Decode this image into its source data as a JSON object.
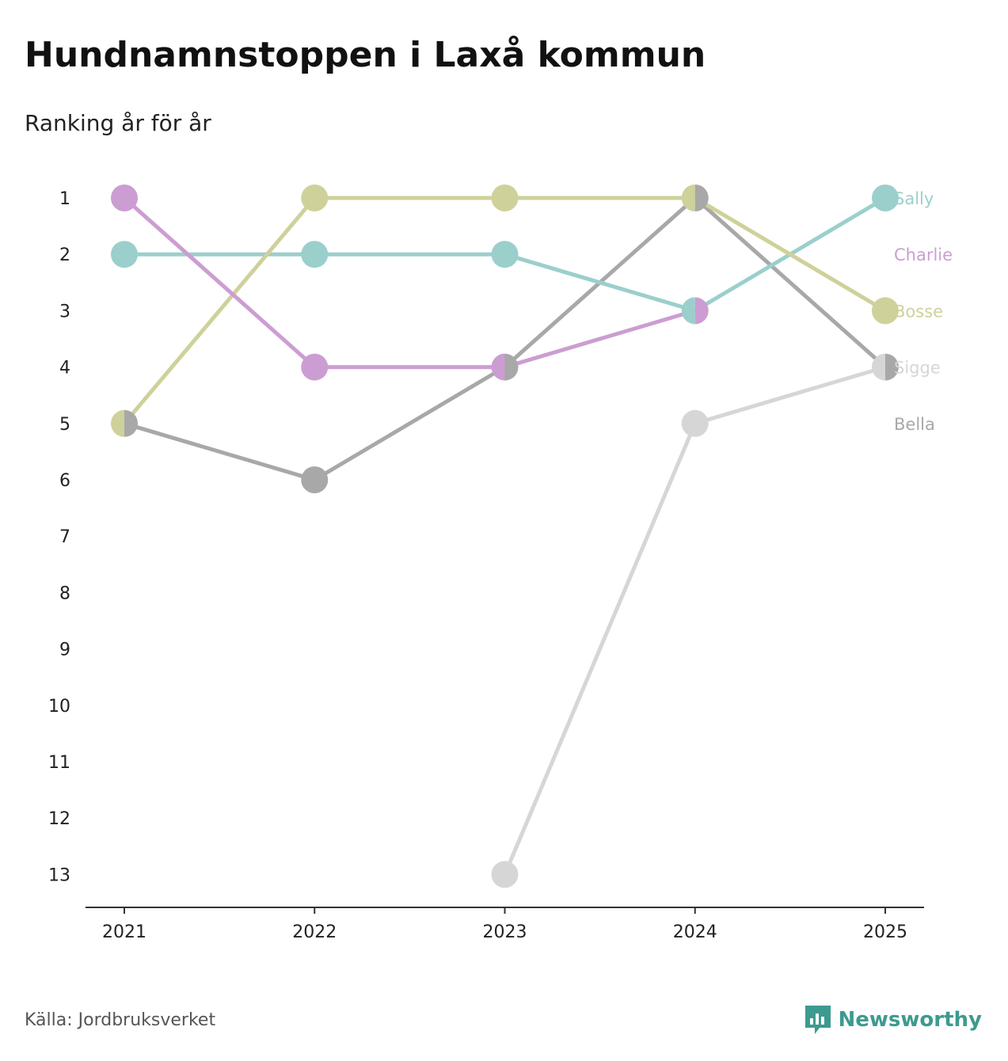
{
  "chart_data": {
    "type": "line",
    "title": "Hundnamnstoppen i Laxå kommun",
    "subtitle": "Ranking år för år",
    "xlabel": "",
    "ylabel": "",
    "categories": [
      "2021",
      "2022",
      "2023",
      "2024",
      "2025"
    ],
    "y_ticks": [
      1,
      2,
      3,
      4,
      5,
      6,
      7,
      8,
      9,
      10,
      11,
      12,
      13
    ],
    "ylim": [
      13,
      1
    ],
    "y_reversed": true,
    "legend_position": "right-end labels",
    "series": [
      {
        "name": "Sally",
        "color": "#9bcfcc",
        "values": [
          2,
          2,
          2,
          3,
          1
        ]
      },
      {
        "name": "Charlie",
        "color": "#cc9dd2",
        "values": [
          1,
          4,
          4,
          3,
          null
        ]
      },
      {
        "name": "Bosse",
        "color": "#cfd19a",
        "values": [
          5,
          1,
          1,
          1,
          3
        ]
      },
      {
        "name": "Sigge",
        "color": "#d6d6d6",
        "values": [
          null,
          null,
          13,
          5,
          4
        ]
      },
      {
        "name": "Bella",
        "color": "#a8a8a8",
        "values": [
          5,
          6,
          4,
          1,
          4
        ]
      }
    ]
  },
  "footer": {
    "source": "Källa: Jordbruksverket",
    "brand": "Newsworthy",
    "brand_color": "#3d9a8f",
    "brand_icon": "newsworthy-logo-icon"
  }
}
